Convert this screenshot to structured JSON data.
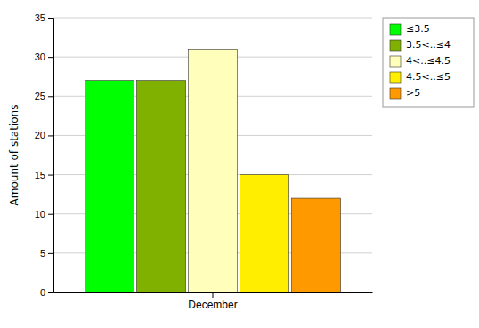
{
  "chart_data": {
    "type": "bar",
    "categories": [
      "December"
    ],
    "series": [
      {
        "name": "≤3.5",
        "color": "#00ff00",
        "values": [
          27
        ]
      },
      {
        "name": "3.5<..≤4",
        "color": "#80b000",
        "values": [
          27
        ]
      },
      {
        "name": "4<..≤4.5",
        "color": "#ffffbb",
        "values": [
          31
        ]
      },
      {
        "name": "4.5<..≤5",
        "color": "#ffee00",
        "values": [
          15
        ]
      },
      {
        "name": ">5",
        "color": "#ff9900",
        "values": [
          12
        ]
      }
    ],
    "ylabel": "Amount of stations",
    "ylim": [
      0,
      35
    ],
    "yticks": [
      0,
      5,
      10,
      15,
      20,
      25,
      30,
      35
    ],
    "grid": true,
    "legend": "upper right"
  }
}
